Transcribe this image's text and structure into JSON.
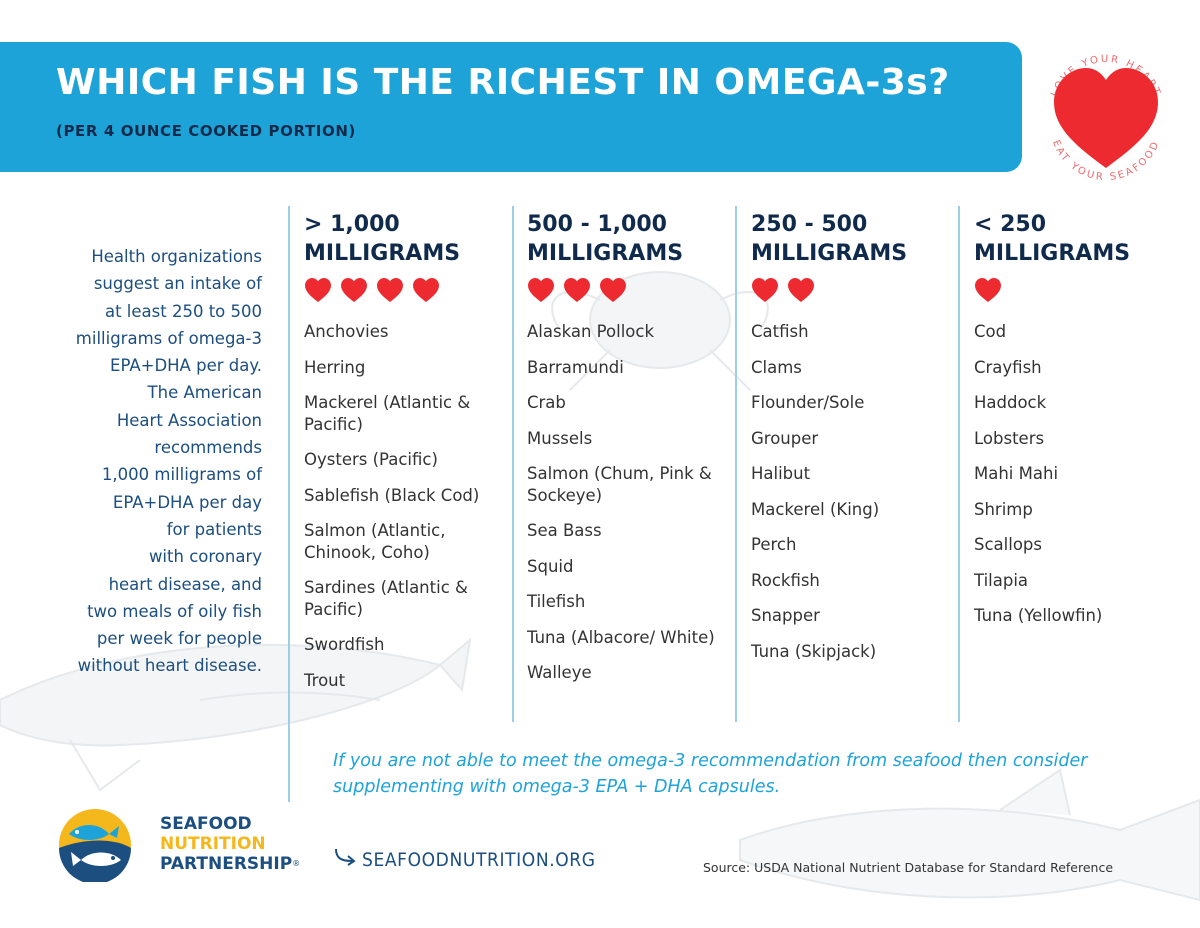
{
  "header": {
    "title": "WHICH FISH IS THE RICHEST IN OMEGA-3s?",
    "subtitle": "(PER 4 OUNCE COOKED PORTION)"
  },
  "badge": {
    "top_text": "LOVE YOUR HEART",
    "bottom_text": "EAT YOUR SEAFOOD",
    "heart_color": "#ed2a2f",
    "ring_text_color": "#ec6b6e"
  },
  "intro": {
    "lines": [
      "Health organizations",
      "suggest an intake of",
      "at least 250 to 500",
      "milligrams of omega-3",
      "EPA+DHA per day.",
      "The American",
      "Heart Association",
      "recommends",
      "1,000 milligrams of",
      "EPA+DHA per day",
      "for patients",
      "with coronary",
      "heart disease, and",
      "two meals of oily fish",
      "per week for people",
      "without heart disease."
    ]
  },
  "columns": [
    {
      "heading_line1": "> 1,000",
      "heading_line2": "MILLIGRAMS",
      "hearts": 4,
      "items": [
        "Anchovies",
        "Herring",
        "Mackerel (Atlantic & Pacific)",
        "Oysters (Pacific)",
        "Sablefish (Black Cod)",
        "Salmon (Atlantic, Chinook, Coho)",
        "Sardines (Atlantic & Pacific)",
        "Swordfish",
        "Trout"
      ]
    },
    {
      "heading_line1": "500 - 1,000",
      "heading_line2": "MILLIGRAMS",
      "hearts": 3,
      "items": [
        "Alaskan Pollock",
        "Barramundi",
        "Crab",
        "Mussels",
        "Salmon (Chum, Pink & Sockeye)",
        "Sea Bass",
        "Squid",
        "Tilefish",
        "Tuna (Albacore/ White)",
        "Walleye"
      ]
    },
    {
      "heading_line1": "250 - 500",
      "heading_line2": "MILLIGRAMS",
      "hearts": 2,
      "items": [
        "Catfish",
        "Clams",
        "Flounder/Sole",
        "Grouper",
        "Halibut",
        "Mackerel (King)",
        "Perch",
        "Rockfish",
        "Snapper",
        "Tuna (Skipjack)"
      ]
    },
    {
      "heading_line1": "< 250",
      "heading_line2": "MILLIGRAMS",
      "hearts": 1,
      "items": [
        "Cod",
        "Crayfish",
        "Haddock",
        "Lobsters",
        "Mahi Mahi",
        "Shrimp",
        "Scallops",
        "Tilapia",
        "Tuna (Yellowfin)"
      ]
    }
  ],
  "footnote": "If you are not able to meet the omega-3 recommendation from seafood then consider supplementing with omega-3 EPA + DHA capsules.",
  "logo": {
    "line1": "SEAFOOD",
    "line2": "NUTRITION",
    "line3": "PARTNERSHIP",
    "mark": "®"
  },
  "website": "SEAFOODNUTRITION.ORG",
  "source": "Source: USDA National Nutrient Database for Standard Reference",
  "colors": {
    "banner": "#1ea3d8",
    "navy": "#0f2a4a",
    "heart": "#ed2a2f",
    "accent_yellow": "#f5b81c",
    "divider": "#9ccfe6"
  }
}
